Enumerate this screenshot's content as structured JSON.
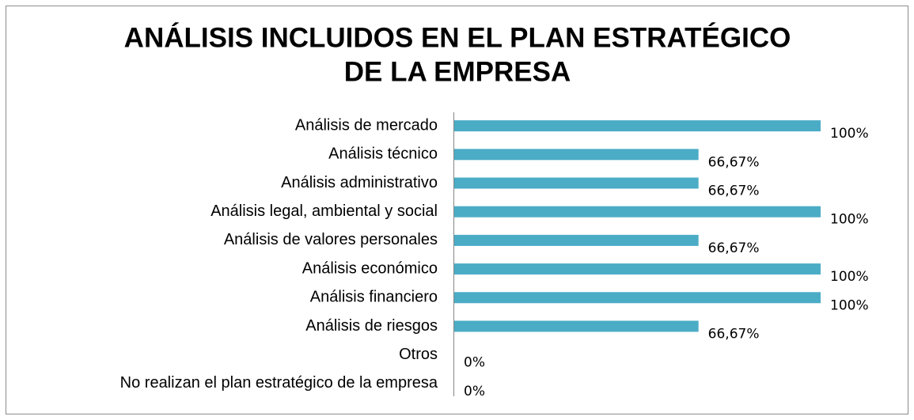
{
  "chart_data": {
    "type": "bar",
    "orientation": "horizontal",
    "title": [
      "ANÁLISIS INCLUIDOS EN EL PLAN ESTRATÉGICO",
      "DE LA EMPRESA"
    ],
    "categories": [
      "Análisis de mercado",
      "Análisis técnico",
      "Análisis administrativo",
      "Análisis  legal, ambiental y social",
      "Análisis de valores personales",
      "Análisis económico",
      "Análisis financiero",
      "Análisis de riesgos",
      "Otros",
      "No realizan el plan estratégico de la empresa"
    ],
    "values": [
      100,
      66.67,
      66.67,
      100,
      66.67,
      100,
      100,
      66.67,
      0,
      0
    ],
    "value_labels": [
      "100%",
      "66,67%",
      "66,67%",
      "100%",
      "66,67%",
      "100%",
      "100%",
      "66,67%",
      "0%",
      "0%"
    ],
    "color": "#4bacc6",
    "xlim": [
      0,
      100
    ]
  }
}
